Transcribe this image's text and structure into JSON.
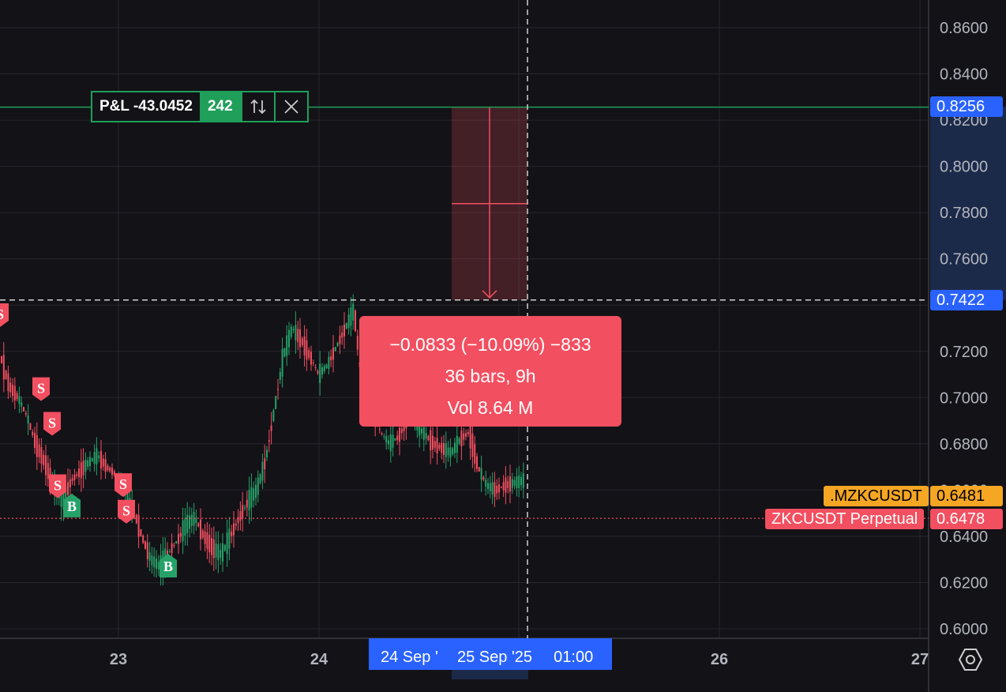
{
  "chart_data": {
    "type": "candlestick",
    "symbol": "ZKCUSDT Perpetual",
    "index_symbol": ".MZKCUSDT",
    "last_price": "0.6478",
    "index_price": "0.6481",
    "y_ticks": [
      "0.8600",
      "0.8400",
      "0.8200",
      "0.8000",
      "0.7800",
      "0.7600",
      "0.7400",
      "0.7200",
      "0.7000",
      "0.6800",
      "0.6600",
      "0.6400",
      "0.6200",
      "0.6000"
    ],
    "x_ticks": [
      "23",
      "24",
      "26",
      "27"
    ],
    "ylim": [
      0.596,
      0.866
    ],
    "position_line_price": "0.8256",
    "crosshair_price": "0.7422",
    "crosshair_date": "25 Sep '25",
    "crosshair_time": "01:00",
    "range_start_date": "24 Sep '",
    "candles_approx": [
      0.718,
      0.705,
      0.7,
      0.692,
      0.68,
      0.672,
      0.662,
      0.655,
      0.664,
      0.668,
      0.672,
      0.675,
      0.67,
      0.667,
      0.66,
      0.652,
      0.64,
      0.63,
      0.627,
      0.633,
      0.638,
      0.645,
      0.648,
      0.64,
      0.635,
      0.632,
      0.64,
      0.648,
      0.655,
      0.66,
      0.673,
      0.695,
      0.718,
      0.73,
      0.725,
      0.718,
      0.71,
      0.714,
      0.722,
      0.73,
      0.738,
      0.7,
      0.695,
      0.685,
      0.68,
      0.683,
      0.69,
      0.688,
      0.684,
      0.68,
      0.678,
      0.676,
      0.682,
      0.685,
      0.67,
      0.662,
      0.66,
      0.662,
      0.663,
      0.664,
      0.665,
      0.647
    ]
  },
  "pl_box": {
    "label": "P&L -43.0452",
    "qty": "242",
    "reverse_icon": "arrows-up-down-icon",
    "close_icon": "close-icon"
  },
  "measure": {
    "line1": "−0.0833 (−10.09%) −833",
    "line2": "36 bars, 9h",
    "line3": "Vol 8.64 M"
  },
  "markers": [
    {
      "type": "S",
      "price": 0.736
    },
    {
      "type": "S",
      "price": 0.704
    },
    {
      "type": "S",
      "price": 0.689
    },
    {
      "type": "S",
      "price": 0.662
    },
    {
      "type": "B",
      "price": 0.653
    },
    {
      "type": "S",
      "price": 0.6625
    },
    {
      "type": "S",
      "price": 0.651
    },
    {
      "type": "B",
      "price": 0.627
    }
  ],
  "colors": {
    "up": "#26a269",
    "down": "#f24f60",
    "bg": "#131217",
    "grid": "#26262c",
    "position": "#1f9f5a",
    "accent": "#2962ff",
    "index_tag": "#f5a623"
  }
}
